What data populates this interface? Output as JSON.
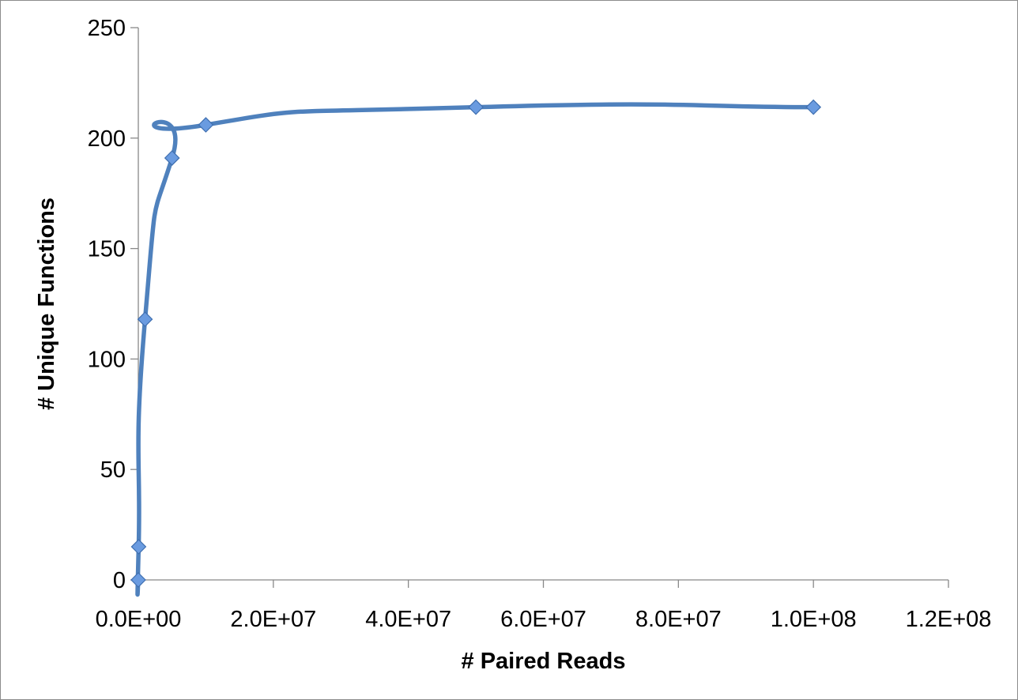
{
  "chart_data": {
    "type": "scatter",
    "title": "",
    "xlabel": "# Paired Reads",
    "ylabel": "# Unique Functions",
    "xlim": [
      0,
      120000000
    ],
    "ylim": [
      0,
      250
    ],
    "x_ticks": [
      0,
      20000000,
      40000000,
      60000000,
      80000000,
      100000000,
      120000000
    ],
    "x_tick_labels": [
      "0.0E+00",
      "2.0E+07",
      "4.0E+07",
      "6.0E+07",
      "8.0E+07",
      "1.0E+08",
      "1.2E+08"
    ],
    "y_ticks": [
      0,
      50,
      100,
      150,
      200,
      250
    ],
    "y_tick_labels": [
      "0",
      "50",
      "100",
      "150",
      "200",
      "250"
    ],
    "grid": false,
    "legend": "none",
    "line_style": "smoothed",
    "marker": "diamond",
    "series": [
      {
        "color": "#4f81bd",
        "marker_color": "#6a9be0",
        "x": [
          0,
          50000,
          1000000,
          5000000,
          10000000,
          50000000,
          100000000
        ],
        "y": [
          0,
          15,
          118,
          191,
          206,
          214,
          214
        ]
      }
    ]
  }
}
